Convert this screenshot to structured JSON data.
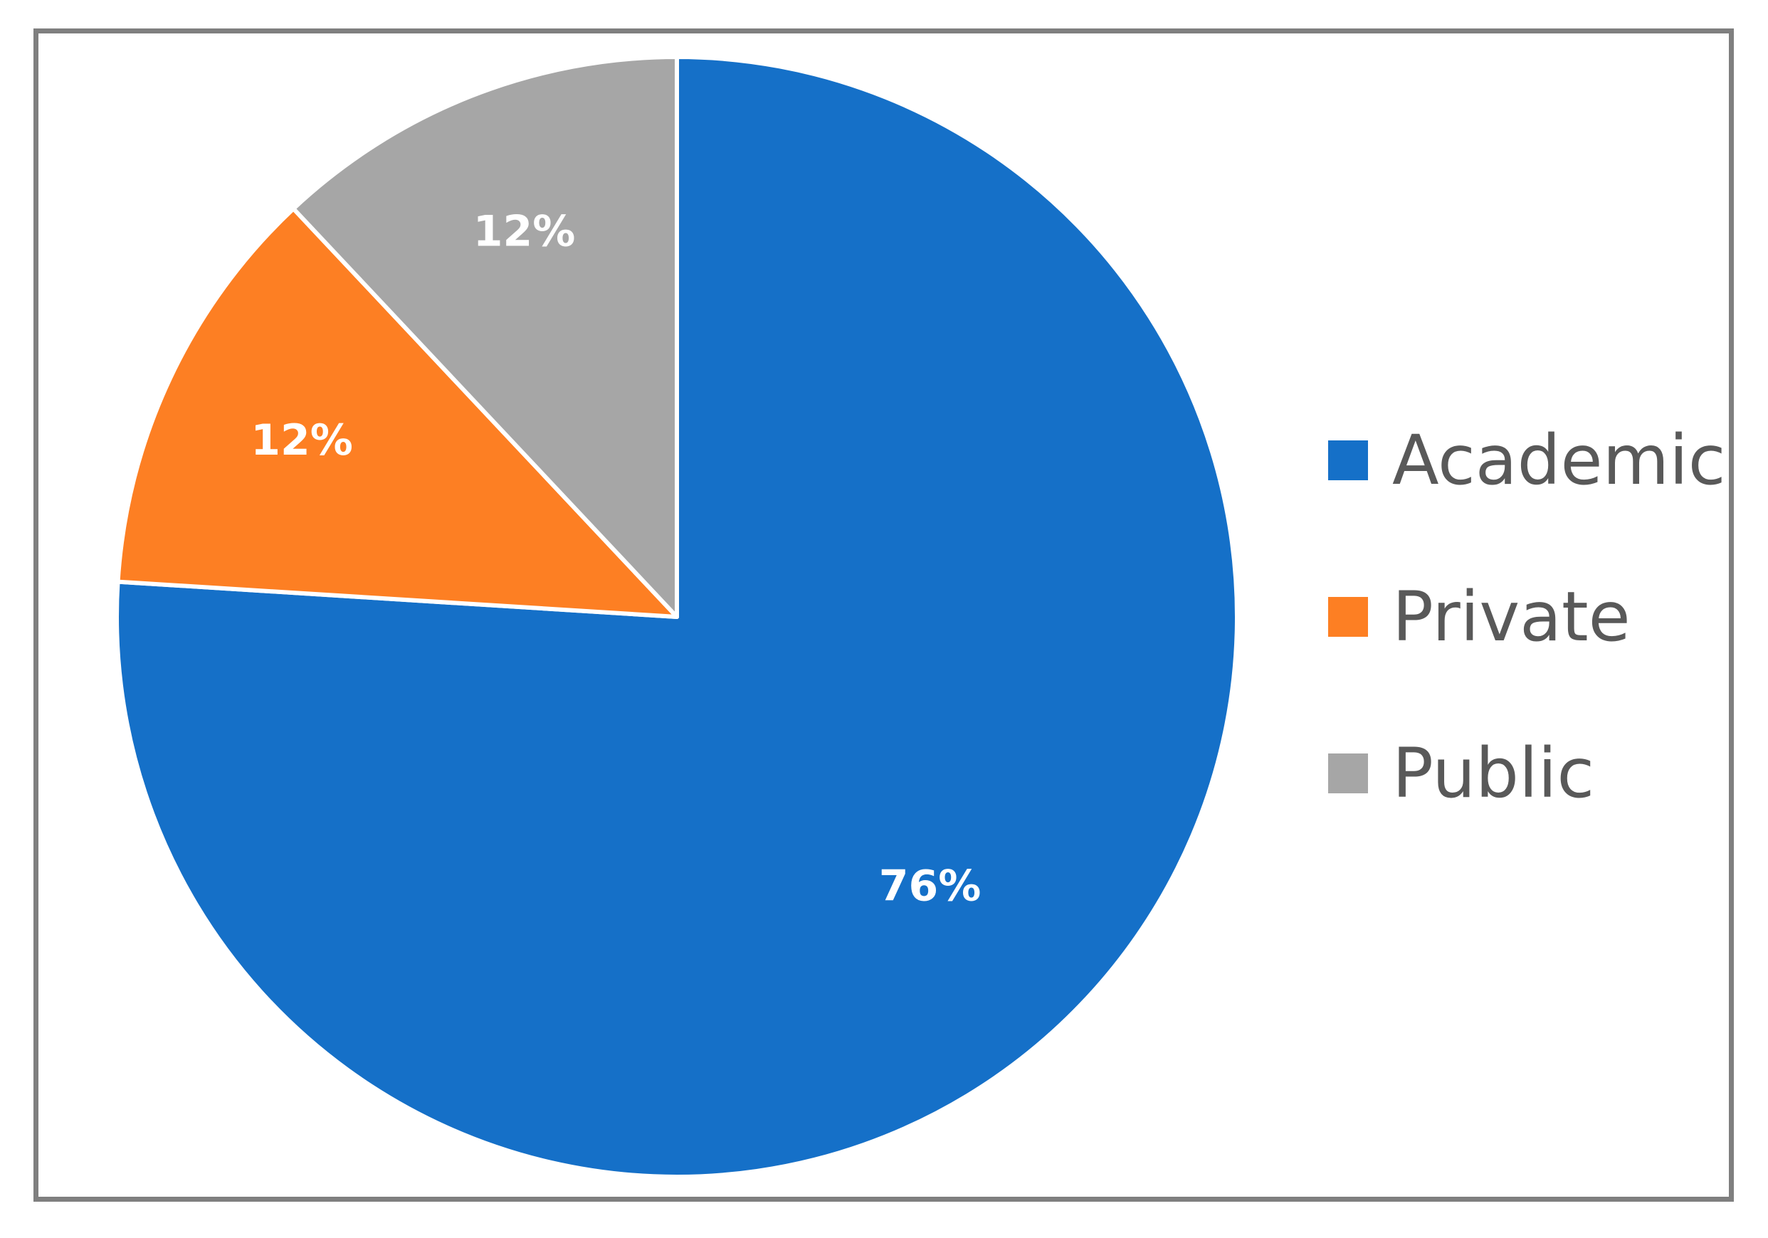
{
  "chart_data": {
    "type": "pie",
    "slices": [
      {
        "label": "Academic",
        "value": 76,
        "display": "76%",
        "color": "#1570c8"
      },
      {
        "label": "Private",
        "value": 12,
        "display": "12%",
        "color": "#fd7f23"
      },
      {
        "label": "Public",
        "value": 12,
        "display": "12%",
        "color": "#a6a6a6"
      }
    ],
    "start_angle_deg": 0,
    "direction": "clockwise",
    "legend_placement": "right",
    "slice_border_color": "#ffffff"
  },
  "legend": {
    "items": [
      {
        "label": "Academic",
        "color": "#1570c8"
      },
      {
        "label": "Private",
        "color": "#fd7f23"
      },
      {
        "label": "Public",
        "color": "#a6a6a6"
      }
    ]
  }
}
